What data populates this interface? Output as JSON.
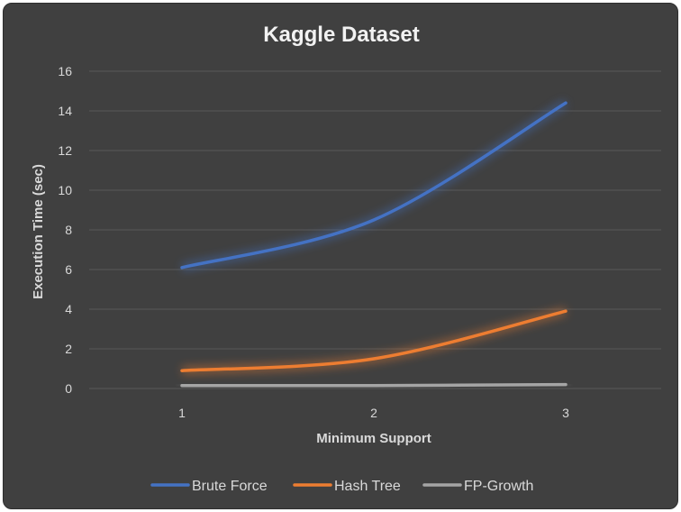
{
  "chart_data": {
    "type": "line",
    "title": "Kaggle Dataset",
    "xlabel": "Minimum Support",
    "ylabel": "Execution Time (sec)",
    "categories": [
      "1",
      "2",
      "3"
    ],
    "ylim": [
      0,
      16
    ],
    "yticks": [
      0,
      2,
      4,
      6,
      8,
      10,
      12,
      14,
      16
    ],
    "grid": true,
    "legend_position": "bottom",
    "series": [
      {
        "name": "Brute Force",
        "color": "#4472c4",
        "values": [
          6.1,
          8.5,
          14.4
        ]
      },
      {
        "name": "Hash Tree",
        "color": "#ed7d31",
        "values": [
          0.9,
          1.5,
          3.9
        ]
      },
      {
        "name": "FP-Growth",
        "color": "#a5a5a5",
        "values": [
          0.15,
          0.15,
          0.2
        ]
      }
    ]
  }
}
